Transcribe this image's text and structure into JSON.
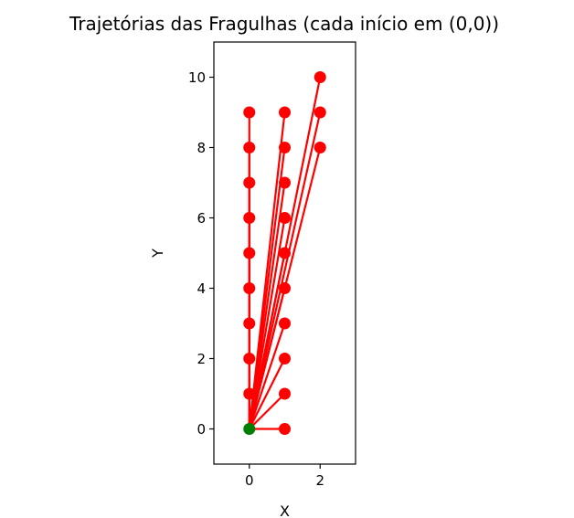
{
  "chart_data": {
    "type": "line",
    "title": "Trajetórias das Fragulhas (cada início em (0,0))",
    "xlabel": "X",
    "ylabel": "Y",
    "xlim": [
      -1,
      3
    ],
    "ylim": [
      -1,
      11
    ],
    "xticks": [
      "0",
      "2"
    ],
    "yticks": [
      "0",
      "2",
      "4",
      "6",
      "8",
      "10"
    ],
    "grid": false,
    "legend": "none",
    "colors": {
      "trajectory": "#ff0000",
      "origin": "#008000",
      "axes": "#000000"
    },
    "origin": [
      0,
      0
    ],
    "endpoints": [
      [
        0,
        1
      ],
      [
        0,
        2
      ],
      [
        0,
        3
      ],
      [
        0,
        4
      ],
      [
        0,
        5
      ],
      [
        0,
        6
      ],
      [
        0,
        7
      ],
      [
        0,
        8
      ],
      [
        0,
        9
      ],
      [
        1,
        0
      ],
      [
        1,
        1
      ],
      [
        1,
        2
      ],
      [
        1,
        3
      ],
      [
        1,
        4
      ],
      [
        1,
        5
      ],
      [
        1,
        6
      ],
      [
        1,
        7
      ],
      [
        1,
        8
      ],
      [
        1,
        9
      ],
      [
        2,
        8
      ],
      [
        2,
        9
      ],
      [
        2,
        10
      ]
    ]
  }
}
